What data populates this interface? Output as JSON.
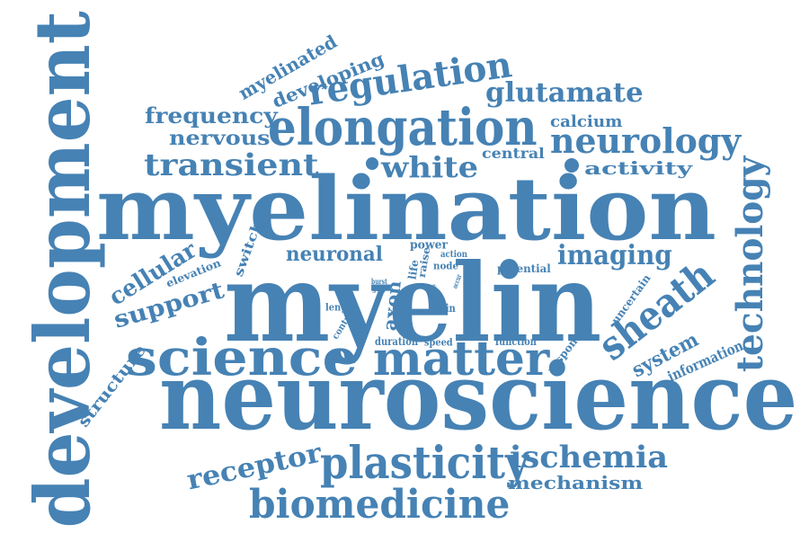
{
  "color": "#4682b4",
  "words": {
    "development": "development",
    "myelination": "myelination",
    "myelin": "myelin",
    "neuroscience": "neuroscience",
    "elongation": "elongation",
    "regulation": "regulation",
    "glutamate": "glutamate",
    "neurology": "neurology",
    "technology": "technology",
    "science": "science",
    "matter": "matter",
    "plasticity": "plasticity",
    "biomedicine": "biomedicine",
    "ischemia": "ischemia",
    "mechanism": "mechanism",
    "receptor": "receptor",
    "sheath": "sheath",
    "system": "system",
    "information": "information",
    "transient": "transient",
    "white": "white",
    "central": "central",
    "activity": "activity",
    "calcium": "calcium",
    "frequency": "frequency",
    "nervous": "nervous",
    "myelinated": "myelinated",
    "developing": "developing",
    "imaging": "imaging",
    "neuronal": "neuronal",
    "cellular": "cellular",
    "support": "support",
    "structure": "structure",
    "switches": "switches",
    "elevation": "elevation",
    "power": "power",
    "raise": "raise",
    "action": "action",
    "node": "node",
    "life": "life",
    "potential": "potential",
    "axon": "axon",
    "burst": "burst",
    "gray": "gray",
    "role": "role",
    "occur": "occur",
    "length": "length",
    "brain": "brain",
    "control": "control",
    "duration": "duration",
    "speed": "speed",
    "function": "function",
    "response": "response",
    "uncertain": "uncertain"
  }
}
